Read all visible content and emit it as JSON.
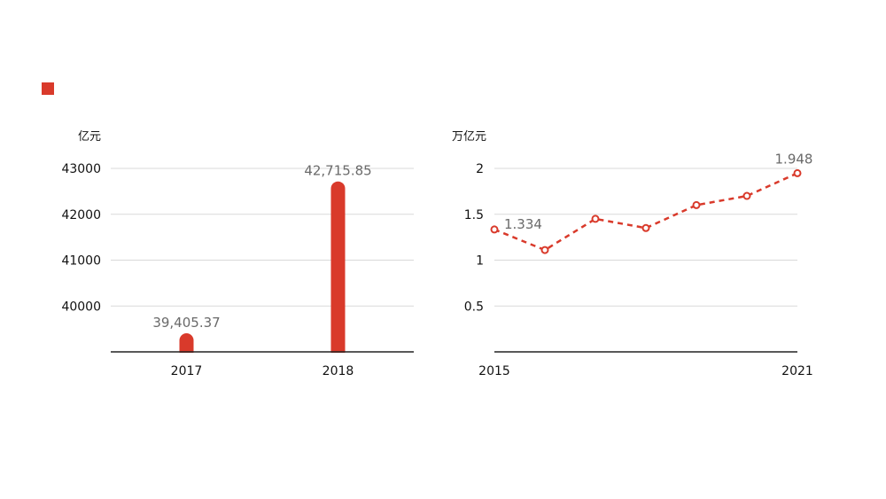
{
  "colors": {
    "accent": "#d93a2b",
    "grid": "#d9d9d9",
    "axis": "#222222"
  },
  "legend_marker": {
    "color": "#d93a2b"
  },
  "chart_data": [
    {
      "type": "bar",
      "unit_label": "亿元",
      "categories": [
        "2017",
        "2018"
      ],
      "values": [
        39405.37,
        42715.85
      ],
      "value_labels": [
        "39,405.37",
        "42,715.85"
      ],
      "y_ticks": [
        "40000",
        "41000",
        "42000",
        "43000"
      ],
      "ylim": [
        39000,
        43000
      ],
      "grid": true,
      "color": "#d93a2b"
    },
    {
      "type": "line",
      "unit_label": "万亿元",
      "x": [
        2015,
        2016,
        2017,
        2018,
        2019,
        2020,
        2021
      ],
      "values": [
        1.334,
        1.11,
        1.45,
        1.35,
        1.6,
        1.7,
        1.948
      ],
      "x_tick_labels": [
        "2015",
        "2021"
      ],
      "value_labels": [
        {
          "index": 0,
          "text": "1.334"
        },
        {
          "index": 6,
          "text": "1.948"
        }
      ],
      "y_ticks": [
        "0.5",
        "1",
        "1.5",
        "2"
      ],
      "ylim": [
        0,
        2
      ],
      "grid": true,
      "line_style": "dashed",
      "color": "#d93a2b"
    }
  ]
}
